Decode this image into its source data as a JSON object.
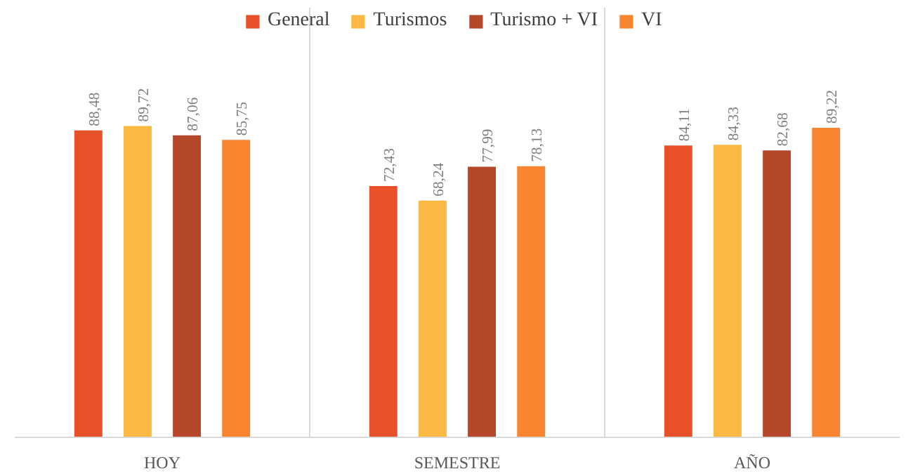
{
  "chart_data": {
    "type": "bar",
    "categories": [
      "HOY",
      "SEMESTRE",
      "AÑO"
    ],
    "series": [
      {
        "name": "General",
        "color": "#e8502a",
        "values": [
          88.48,
          72.43,
          84.11
        ],
        "value_labels": [
          "88,48",
          "72,43",
          "84,11"
        ]
      },
      {
        "name": "Turismos",
        "color": "#fbb843",
        "values": [
          89.72,
          68.24,
          84.33
        ],
        "value_labels": [
          "89,72",
          "68,24",
          "84,33"
        ]
      },
      {
        "name": "Turismo + VI",
        "color": "#b5472a",
        "values": [
          87.06,
          77.99,
          82.68
        ],
        "value_labels": [
          "87,06",
          "77,99",
          "82,68"
        ]
      },
      {
        "name": "VI",
        "color": "#f98530",
        "values": [
          85.75,
          78.13,
          89.22
        ],
        "value_labels": [
          "85,75",
          "78,13",
          "89,22"
        ]
      }
    ],
    "grid": "x",
    "legend": "top"
  }
}
